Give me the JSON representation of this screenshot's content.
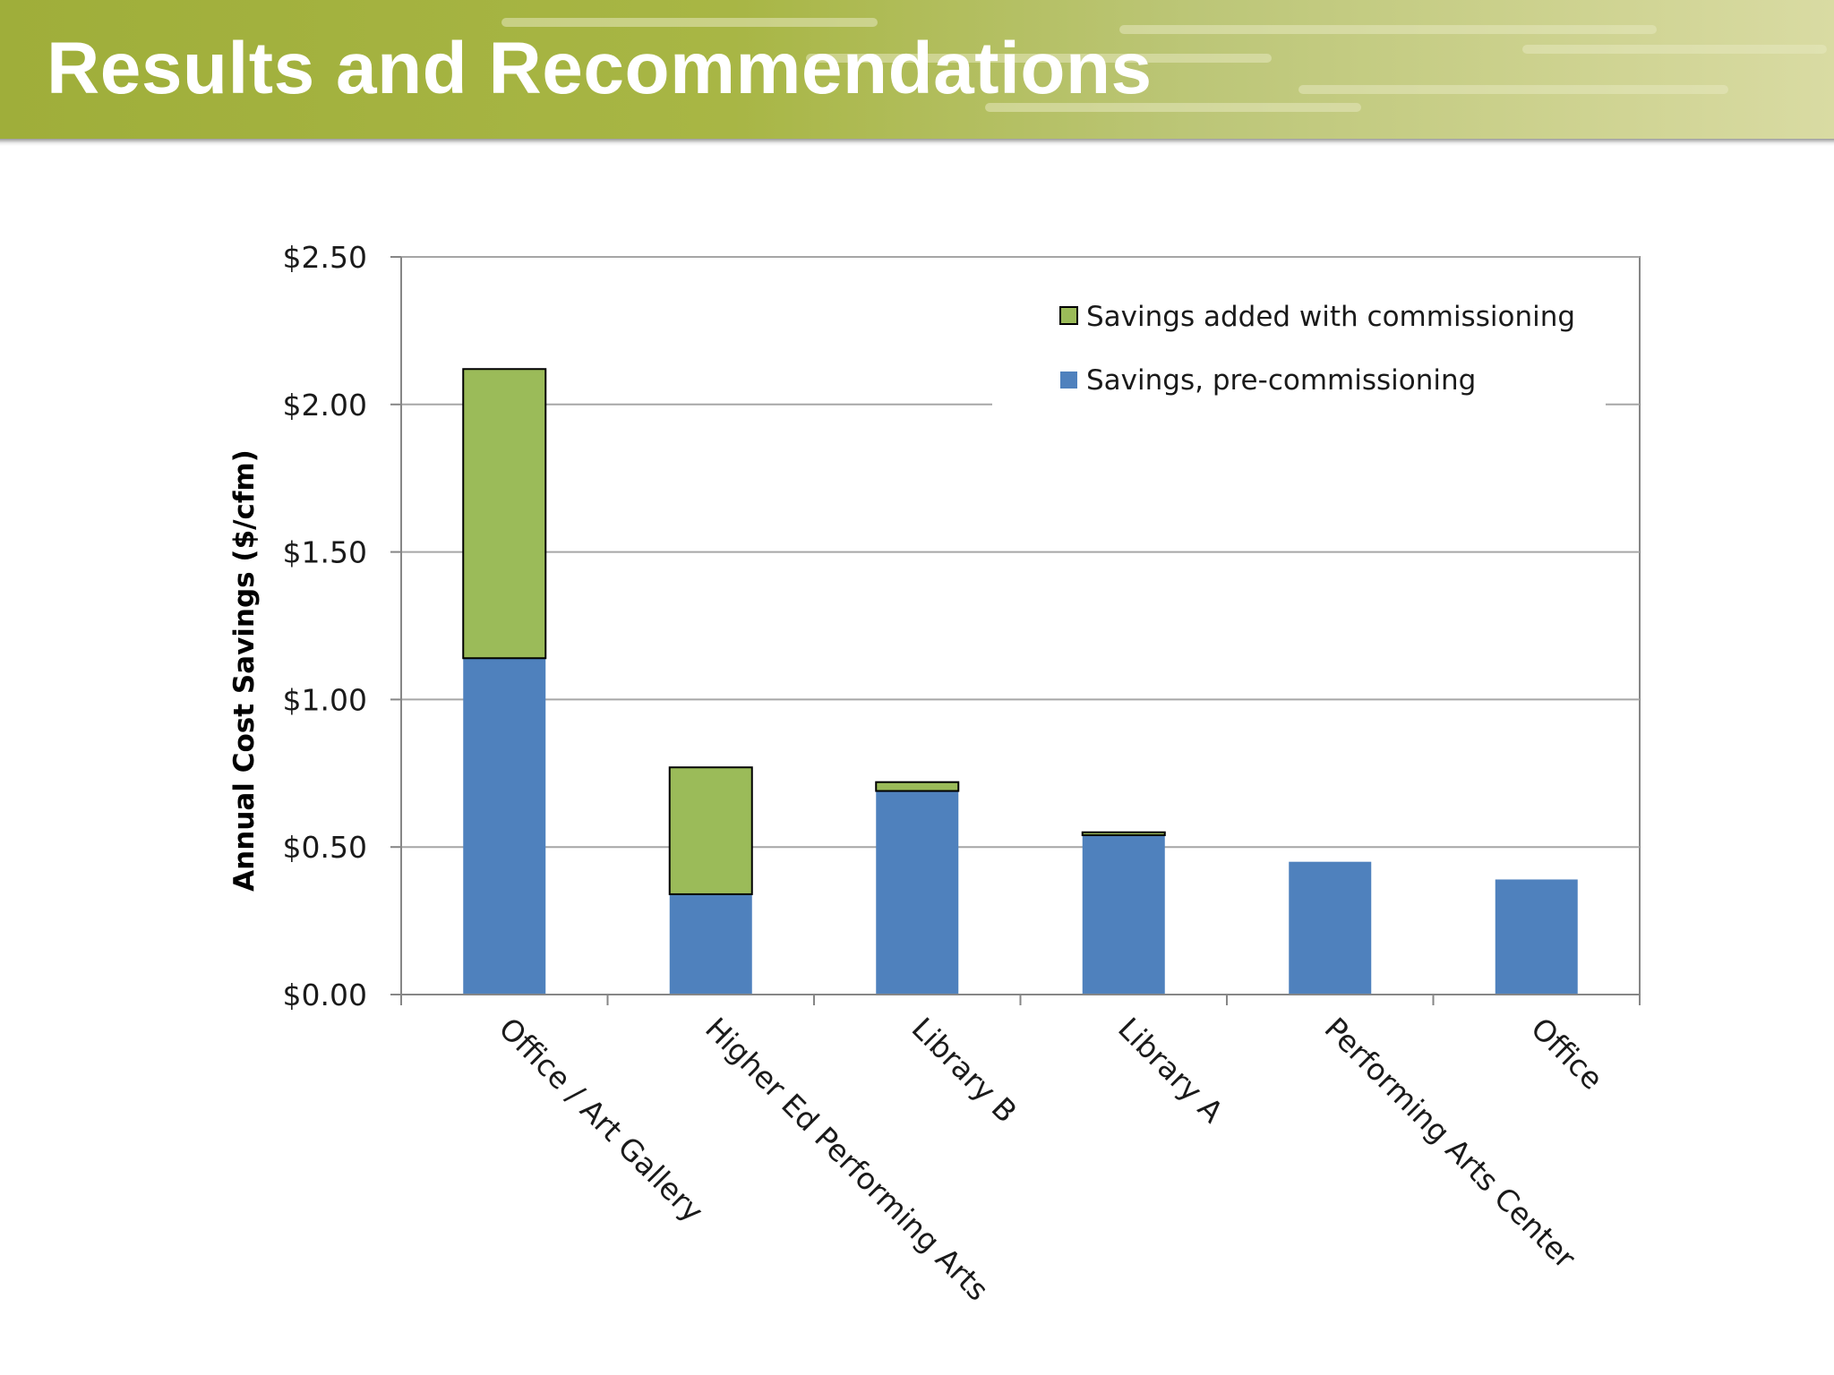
{
  "slide": {
    "title": "Results and Recommendations"
  },
  "colors": {
    "pre": "#4f81bd",
    "added": "#9bbb59",
    "grid": "#a6a6a6",
    "axis": "#868686"
  },
  "chart_data": {
    "type": "bar",
    "stacked": true,
    "title": "",
    "xlabel": "",
    "ylabel": "Annual Cost Savings ($/cfm)",
    "ylim": [
      0,
      2.5
    ],
    "yticks": [
      0,
      0.5,
      1.0,
      1.5,
      2.0,
      2.5
    ],
    "ytick_labels": [
      "$0.00",
      "$0.50",
      "$1.00",
      "$1.50",
      "$2.00",
      "$2.50"
    ],
    "grid": true,
    "legend_position": "top-right",
    "categories": [
      "Office / Art Gallery",
      "Higher Ed Performing Arts",
      "Library B",
      "Library A",
      "Performing Arts Center",
      "Office"
    ],
    "series": [
      {
        "name": "Savings, pre-commissioning",
        "values": [
          1.14,
          0.34,
          0.69,
          0.54,
          0.45,
          0.39
        ]
      },
      {
        "name": "Savings added with commissioning",
        "values": [
          0.98,
          0.43,
          0.03,
          0.01,
          0.0,
          0.0
        ]
      }
    ],
    "legend": [
      "Savings added with commissioning",
      "Savings, pre-commissioning"
    ]
  }
}
